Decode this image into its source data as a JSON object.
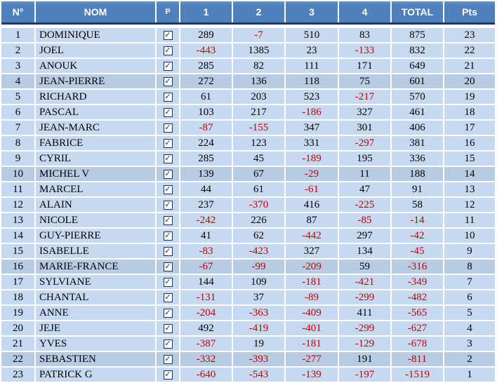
{
  "table": {
    "columns": [
      {
        "key": "n",
        "label": "N°"
      },
      {
        "key": "nom",
        "label": "NOM"
      },
      {
        "key": "p",
        "label": "P"
      },
      {
        "key": "r1",
        "label": "1"
      },
      {
        "key": "r2",
        "label": "2"
      },
      {
        "key": "r3",
        "label": "3"
      },
      {
        "key": "r4",
        "label": "4"
      },
      {
        "key": "total",
        "label": "TOTAL"
      },
      {
        "key": "pts",
        "label": "Pts"
      }
    ],
    "colors": {
      "header_bg": "#4f81bd",
      "header_text": "#ffffff",
      "header_underline": "#1f3864",
      "row_bg": "#c6d9f0",
      "row_bg_shaded": "#b7cbe3",
      "negative_number": "#c00000",
      "positive_number": "#000000",
      "checkbox": "#16365c",
      "gridline": "#ffffff"
    },
    "icons": {
      "present_checkbox": "checked-checkbox",
      "checkbox_glyph": "✓"
    },
    "rows": [
      {
        "n": 1,
        "nom": "DOMINIQUE",
        "p": true,
        "scores": [
          289,
          -7,
          510,
          83
        ],
        "total": 875,
        "pts": 23
      },
      {
        "n": 2,
        "nom": "JOEL",
        "p": true,
        "scores": [
          -443,
          1385,
          23,
          -133
        ],
        "total": 832,
        "pts": 22
      },
      {
        "n": 3,
        "nom": "ANOUK",
        "p": true,
        "scores": [
          285,
          82,
          111,
          171
        ],
        "total": 649,
        "pts": 21
      },
      {
        "n": 4,
        "nom": "JEAN-PIERRE",
        "p": true,
        "scores": [
          272,
          136,
          118,
          75
        ],
        "total": 601,
        "pts": 20
      },
      {
        "n": 5,
        "nom": "RICHARD",
        "p": true,
        "scores": [
          61,
          203,
          523,
          -217
        ],
        "total": 570,
        "pts": 19
      },
      {
        "n": 6,
        "nom": "PASCAL",
        "p": true,
        "scores": [
          103,
          217,
          -186,
          327
        ],
        "total": 461,
        "pts": 18
      },
      {
        "n": 7,
        "nom": "JEAN-MARC",
        "p": true,
        "scores": [
          -87,
          -155,
          347,
          301
        ],
        "total": 406,
        "pts": 17
      },
      {
        "n": 8,
        "nom": "FABRICE",
        "p": true,
        "scores": [
          224,
          123,
          331,
          -297
        ],
        "total": 381,
        "pts": 16
      },
      {
        "n": 9,
        "nom": "CYRIL",
        "p": true,
        "scores": [
          285,
          45,
          -189,
          195
        ],
        "total": 336,
        "pts": 15
      },
      {
        "n": 10,
        "nom": "MICHEL V",
        "p": true,
        "scores": [
          139,
          67,
          -29,
          11
        ],
        "total": 188,
        "pts": 14
      },
      {
        "n": 11,
        "nom": "MARCEL",
        "p": true,
        "scores": [
          44,
          61,
          -61,
          47
        ],
        "total": 91,
        "pts": 13
      },
      {
        "n": 12,
        "nom": "ALAIN",
        "p": true,
        "scores": [
          237,
          -370,
          416,
          -225
        ],
        "total": 58,
        "pts": 12
      },
      {
        "n": 13,
        "nom": "NICOLE",
        "p": true,
        "scores": [
          -242,
          226,
          87,
          -85
        ],
        "total": -14,
        "pts": 11
      },
      {
        "n": 14,
        "nom": "GUY-PIERRE",
        "p": true,
        "scores": [
          41,
          62,
          -442,
          297
        ],
        "total": -42,
        "pts": 10
      },
      {
        "n": 15,
        "nom": "ISABELLE",
        "p": true,
        "scores": [
          -83,
          -423,
          327,
          134
        ],
        "total": -45,
        "pts": 9
      },
      {
        "n": 16,
        "nom": "MARIE-FRANCE",
        "p": true,
        "scores": [
          -67,
          -99,
          -209,
          59
        ],
        "total": -316,
        "pts": 8
      },
      {
        "n": 17,
        "nom": "SYLVIANE",
        "p": true,
        "scores": [
          144,
          109,
          -181,
          -421
        ],
        "total": -349,
        "pts": 7
      },
      {
        "n": 18,
        "nom": "CHANTAL",
        "p": true,
        "scores": [
          -131,
          37,
          -89,
          -299
        ],
        "total": -482,
        "pts": 6
      },
      {
        "n": 19,
        "nom": "ANNE",
        "p": true,
        "scores": [
          -204,
          -363,
          -409,
          411
        ],
        "total": -565,
        "pts": 5
      },
      {
        "n": 20,
        "nom": "JEJE",
        "p": true,
        "scores": [
          492,
          -419,
          -401,
          -299
        ],
        "total": -627,
        "pts": 4
      },
      {
        "n": 21,
        "nom": "YVES",
        "p": true,
        "scores": [
          -387,
          19,
          -181,
          -129
        ],
        "total": -678,
        "pts": 3
      },
      {
        "n": 22,
        "nom": "SEBASTIEN",
        "p": true,
        "scores": [
          -332,
          -393,
          -277,
          191
        ],
        "total": -811,
        "pts": 2
      },
      {
        "n": 23,
        "nom": "PATRICK G",
        "p": true,
        "scores": [
          -640,
          -543,
          -139,
          -197
        ],
        "total": -1519,
        "pts": 1
      }
    ]
  }
}
